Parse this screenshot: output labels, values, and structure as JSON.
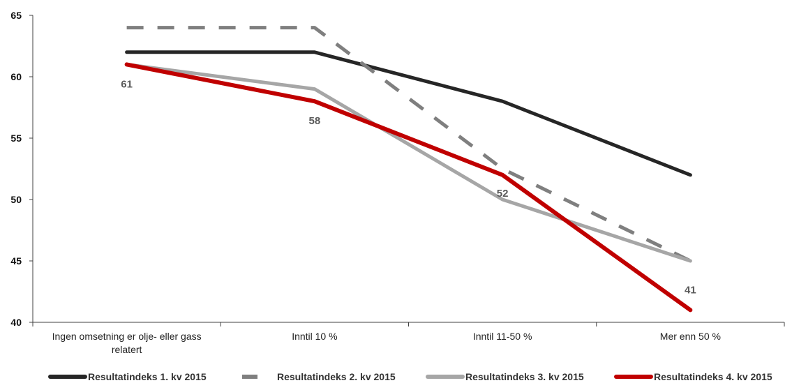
{
  "chart_data": {
    "type": "line",
    "categories": [
      "Ingen omsetning er olje- eller gass relatert",
      "Inntil 10 %",
      "Inntil 11-50  %",
      "Mer enn 50 %"
    ],
    "ylim": [
      40,
      65
    ],
    "yticks": [
      40,
      45,
      50,
      55,
      60,
      65
    ],
    "grid": false,
    "legend_position": "bottom",
    "series": [
      {
        "name": "Resultatindeks 1. kv 2015",
        "values": [
          62,
          62,
          58,
          52
        ],
        "color": "#262626",
        "dash": "solid"
      },
      {
        "name": "Resultatindeks 2. kv 2015",
        "values": [
          64,
          64,
          52.5,
          45
        ],
        "color": "#7f7f7f",
        "dash": "dashed"
      },
      {
        "name": "Resultatindeks 3. kv 2015",
        "values": [
          61,
          59,
          50,
          45
        ],
        "color": "#a6a6a6",
        "dash": "solid"
      },
      {
        "name": "Resultatindeks 4. kv 2015",
        "values": [
          61,
          58,
          52,
          41
        ],
        "color": "#c00000",
        "dash": "solid"
      }
    ],
    "data_labels": [
      {
        "series": 3,
        "index": 0,
        "text": "61"
      },
      {
        "series": 3,
        "index": 1,
        "text": "58"
      },
      {
        "series": 3,
        "index": 2,
        "text": "52"
      },
      {
        "series": 3,
        "index": 3,
        "text": "41"
      }
    ]
  }
}
